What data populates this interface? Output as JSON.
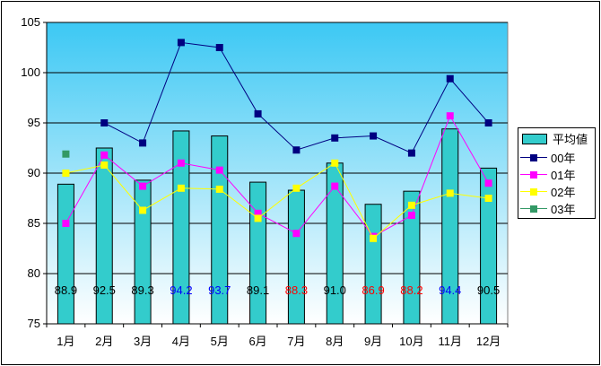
{
  "chart_data": {
    "type": "bar",
    "categories": [
      "1月",
      "2月",
      "3月",
      "4月",
      "5月",
      "6月",
      "7月",
      "8月",
      "9月",
      "10月",
      "11月",
      "12月"
    ],
    "ylim": [
      75,
      105
    ],
    "yticks": [
      75,
      80,
      85,
      90,
      95,
      100,
      105
    ],
    "grid": true,
    "legend_position": "right",
    "bar_series": {
      "name": "平均値",
      "color": "#33cccc",
      "values": [
        88.9,
        92.5,
        89.3,
        94.2,
        93.7,
        89.1,
        88.3,
        91.0,
        86.9,
        88.2,
        94.4,
        90.5
      ],
      "labels": [
        "88.9",
        "92.5",
        "89.3",
        "94.2",
        "93.7",
        "89.1",
        "88.3",
        "91.0",
        "86.9",
        "88.2",
        "94.4",
        "90.5"
      ],
      "label_colors": [
        "#000000",
        "#000000",
        "#000000",
        "#0000ff",
        "#0000ff",
        "#000000",
        "#ff0000",
        "#000000",
        "#ff0000",
        "#ff0000",
        "#0000ff",
        "#000000"
      ]
    },
    "series": [
      {
        "name": "00年",
        "type": "line",
        "color": "#000080",
        "marker": "square",
        "values": [
          null,
          95.0,
          93.0,
          103.0,
          102.5,
          95.9,
          92.3,
          93.5,
          93.7,
          92.0,
          99.4,
          95.0
        ]
      },
      {
        "name": "01年",
        "type": "line",
        "color": "#ff00ff",
        "marker": "square",
        "values": [
          85.0,
          91.8,
          88.7,
          91.0,
          90.3,
          86.0,
          84.0,
          88.7,
          83.7,
          85.8,
          95.7,
          89.0
        ]
      },
      {
        "name": "02年",
        "type": "line",
        "color": "#ffff00",
        "marker": "square",
        "values": [
          90.0,
          90.8,
          86.3,
          88.5,
          88.4,
          85.5,
          88.5,
          91.0,
          83.5,
          86.8,
          88.0,
          87.5
        ]
      },
      {
        "name": "03年",
        "type": "line",
        "color": "#339966",
        "marker": "square",
        "values": [
          91.9,
          null,
          null,
          null,
          null,
          null,
          null,
          null,
          null,
          null,
          null,
          null
        ]
      }
    ]
  },
  "legend": {
    "items": [
      "平均値",
      "00年",
      "01年",
      "02年",
      "03年"
    ]
  }
}
